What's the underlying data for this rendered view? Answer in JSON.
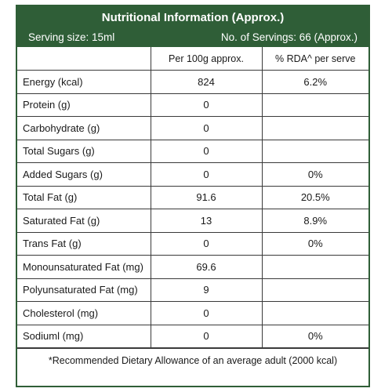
{
  "header": {
    "title": "Nutritional Information (Approx.)",
    "serving_size": "Serving size: 15ml",
    "servings": "No. of Servings: 66 (Approx.)"
  },
  "table": {
    "columns": [
      "",
      "Per 100g approx.",
      "% RDA^ per serve"
    ],
    "rows": [
      {
        "name": "Energy (kcal)",
        "per100g": "824",
        "rda": "6.2%"
      },
      {
        "name": "Protein (g)",
        "per100g": "0",
        "rda": ""
      },
      {
        "name": "Carbohydrate (g)",
        "per100g": "0",
        "rda": ""
      },
      {
        "name": "Total Sugars (g)",
        "per100g": "0",
        "rda": ""
      },
      {
        "name": "Added Sugars (g)",
        "per100g": "0",
        "rda": "0%"
      },
      {
        "name": "Total Fat (g)",
        "per100g": "91.6",
        "rda": "20.5%"
      },
      {
        "name": "Saturated Fat (g)",
        "per100g": "13",
        "rda": "8.9%"
      },
      {
        "name": "Trans Fat (g)",
        "per100g": "0",
        "rda": "0%"
      },
      {
        "name": "Monounsaturated Fat (mg)",
        "per100g": "69.6",
        "rda": ""
      },
      {
        "name": "Polyunsaturated Fat (mg)",
        "per100g": "9",
        "rda": ""
      },
      {
        "name": "Cholesterol (mg)",
        "per100g": "0",
        "rda": ""
      },
      {
        "name": "Sodiuml (mg)",
        "per100g": "0",
        "rda": "0%"
      }
    ]
  },
  "footnote": "*Recommended Dietary Allowance of an average adult (2000 kcal)",
  "colors": {
    "header_bg": "#2f5e37",
    "border": "#3a3a3a"
  }
}
